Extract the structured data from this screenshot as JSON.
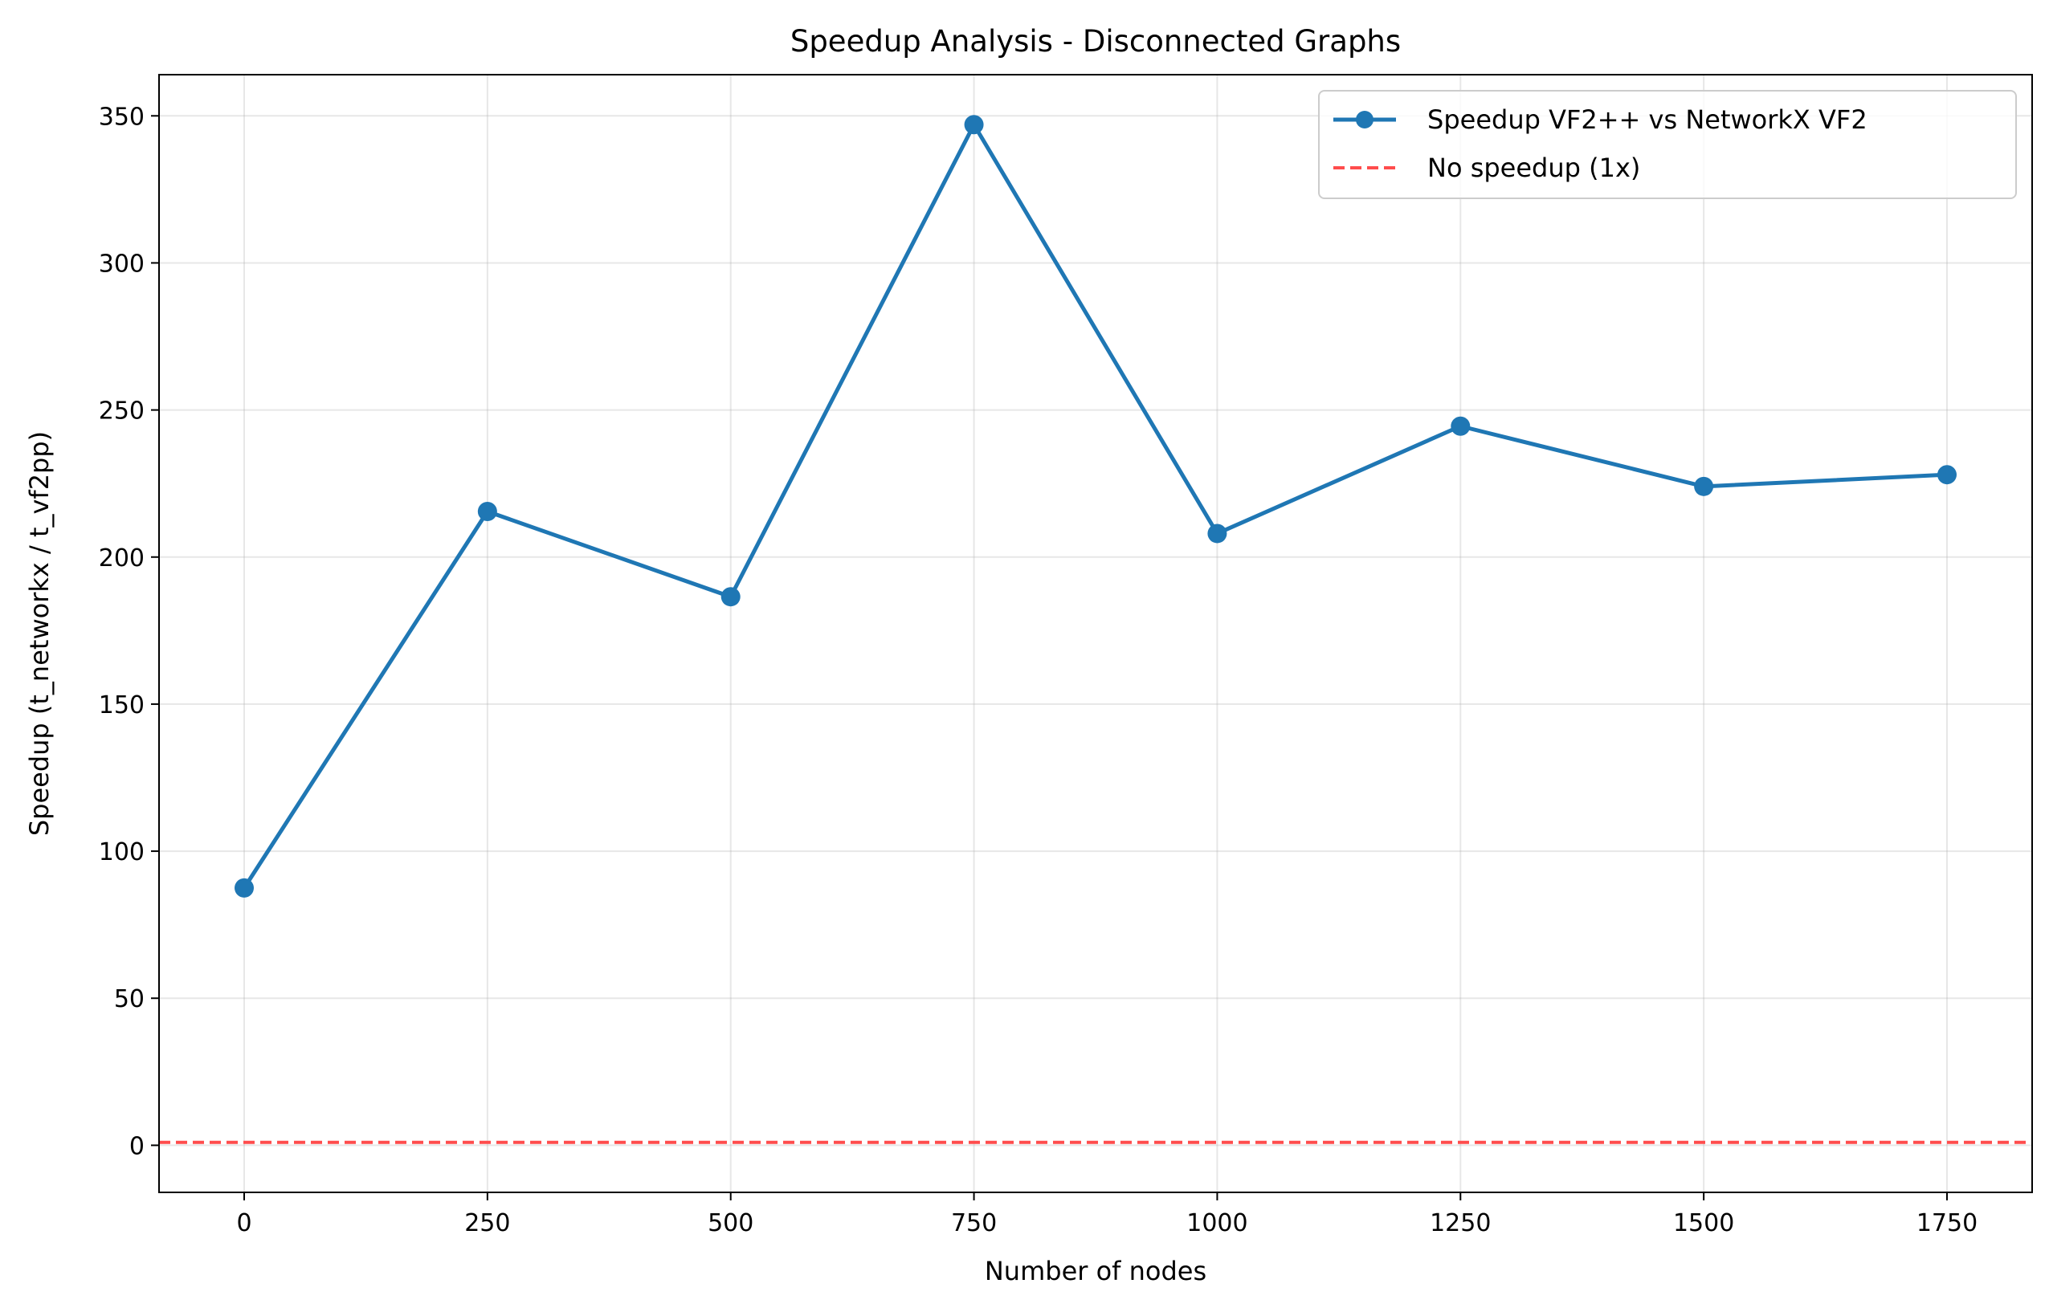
{
  "chart_data": {
    "type": "line",
    "title": "Speedup Analysis - Disconnected Graphs",
    "xlabel": "Number of nodes",
    "ylabel": "Speedup (t_networkx / t_vf2pp)",
    "xlim": [
      -87.5,
      1837.5
    ],
    "ylim": [
      -16,
      364
    ],
    "xticks": [
      0,
      250,
      500,
      750,
      1000,
      1250,
      1500,
      1750
    ],
    "yticks": [
      0,
      50,
      100,
      150,
      200,
      250,
      300,
      350
    ],
    "grid": true,
    "legend_position": "top-right",
    "series": [
      {
        "name": "Speedup VF2++ vs NetworkX VF2",
        "color": "#1f77b4",
        "style": "solid",
        "marker": "circle",
        "x": [
          0,
          250,
          500,
          750,
          1000,
          1250,
          1500,
          1750
        ],
        "y": [
          87.5,
          215.5,
          186.5,
          347,
          208,
          244.5,
          224,
          228
        ]
      }
    ],
    "reference_lines": [
      {
        "name": "No speedup (1x)",
        "y": 1,
        "color": "#ff4d4d",
        "style": "dashed"
      }
    ]
  }
}
